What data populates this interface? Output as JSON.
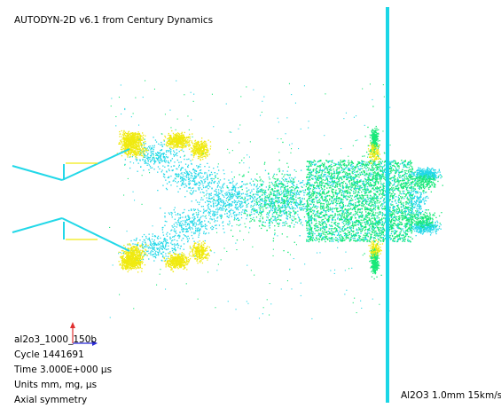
{
  "header": {
    "title": "AUTODYN-2D v6.1 from Century Dynamics"
  },
  "info": {
    "model": "al2o3_1000_150b",
    "cycle": "Cycle 1441691",
    "time": "Time 3.000E+000 μs",
    "units": "Units mm, mg, μs",
    "symmetry": "Axial symmetry"
  },
  "material_label": "Al2O3 1.0mm  15km/s",
  "colors": {
    "cyan": "#22d8e8",
    "green": "#18e878",
    "yellow": "#f0ea10",
    "plate": "#1ad6e6",
    "axis_x": "#2b2bd6",
    "axis_y": "#e03030"
  }
}
